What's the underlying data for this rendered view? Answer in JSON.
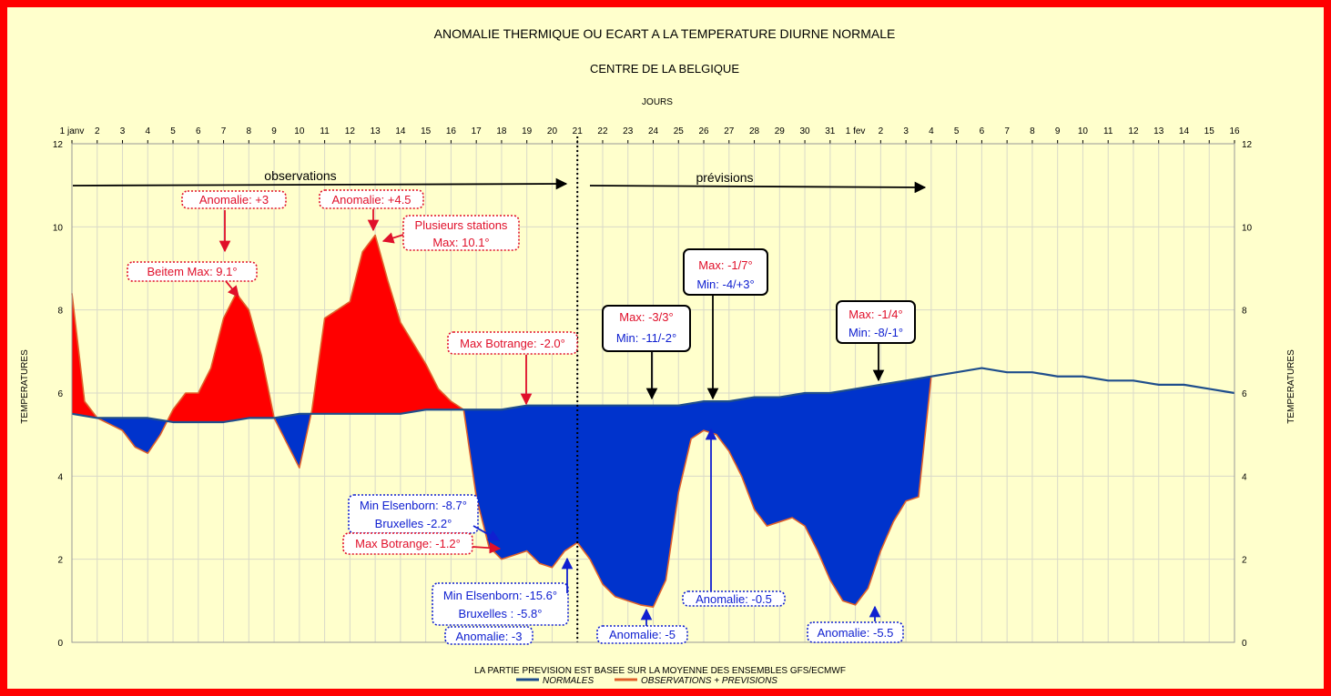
{
  "chart_data": {
    "type": "area",
    "title": "ANOMALIE THERMIQUE OU ECART A LA TEMPERATURE DIURNE NORMALE",
    "subtitle": "CENTRE DE LA BELGIQUE",
    "xlabel": "JOURS",
    "ylabel": "TEMPERATURES",
    "ylim": [
      0,
      12
    ],
    "yticks": [
      0,
      2,
      4,
      6,
      8,
      10,
      12
    ],
    "grid": true,
    "x_tick_labels": [
      "1 janv",
      "2",
      "3",
      "4",
      "5",
      "6",
      "7",
      "8",
      "9",
      "10",
      "11",
      "12",
      "13",
      "14",
      "15",
      "16",
      "17",
      "18",
      "19",
      "20",
      "21",
      "22",
      "23",
      "24",
      "25",
      "26",
      "27",
      "28",
      "29",
      "30",
      "31",
      "1 fev",
      "2",
      "3",
      "4",
      "5",
      "6",
      "7",
      "8",
      "9",
      "10",
      "11",
      "12",
      "13",
      "14",
      "15",
      "16"
    ],
    "series": [
      {
        "name": "NORMALES",
        "color": "#1f4e8c",
        "x": [
          1,
          2,
          3,
          4,
          5,
          6,
          7,
          8,
          9,
          10,
          11,
          12,
          13,
          14,
          15,
          16,
          17,
          18,
          19,
          20,
          21,
          22,
          23,
          24,
          25,
          26,
          27,
          28,
          29,
          30,
          31,
          32,
          33,
          34,
          35,
          36,
          37,
          38,
          39,
          40,
          41,
          42,
          43,
          44,
          45,
          46,
          47
        ],
        "values": [
          5.5,
          5.4,
          5.4,
          5.4,
          5.3,
          5.3,
          5.3,
          5.4,
          5.4,
          5.5,
          5.5,
          5.5,
          5.5,
          5.5,
          5.6,
          5.6,
          5.6,
          5.6,
          5.7,
          5.7,
          5.7,
          5.7,
          5.7,
          5.7,
          5.7,
          5.8,
          5.8,
          5.9,
          5.9,
          6.0,
          6.0,
          6.1,
          6.2,
          6.3,
          6.4,
          6.5,
          6.6,
          6.5,
          6.5,
          6.4,
          6.4,
          6.3,
          6.3,
          6.2,
          6.2,
          6.1,
          6.0
        ]
      },
      {
        "name": "OBSERVATIONS + PREVISIONS",
        "color": "#e0602a",
        "x": [
          1,
          1.5,
          2,
          3,
          3.5,
          4,
          4.5,
          5,
          5.5,
          6,
          6.5,
          7,
          7.5,
          8,
          8.5,
          9,
          9.5,
          10,
          10.5,
          11,
          11.5,
          12,
          12.5,
          13,
          13.5,
          14,
          14.5,
          15,
          15.5,
          16,
          16.5,
          17,
          17.5,
          18,
          18.5,
          19,
          19.5,
          20,
          20.5,
          21,
          21.5,
          22,
          22.5,
          23,
          23.5,
          24,
          24.5,
          25,
          25.5,
          26,
          26.5,
          27,
          27.5,
          28,
          28.5,
          29,
          29.5,
          30,
          30.5,
          31,
          31.5,
          32,
          32.5,
          33,
          33.5,
          34,
          34.5,
          35
        ],
        "values": [
          8.4,
          5.8,
          5.4,
          5.1,
          4.7,
          4.55,
          5.0,
          5.6,
          6.0,
          6.0,
          6.6,
          7.8,
          8.4,
          8.0,
          6.9,
          5.4,
          4.8,
          4.2,
          5.6,
          7.8,
          8.0,
          8.2,
          9.4,
          9.8,
          8.7,
          7.7,
          7.2,
          6.7,
          6.1,
          5.8,
          5.6,
          3.5,
          2.3,
          2.0,
          2.1,
          2.2,
          1.9,
          1.8,
          2.2,
          2.4,
          2.0,
          1.4,
          1.1,
          1.0,
          0.9,
          0.85,
          1.5,
          3.6,
          4.9,
          5.1,
          5.0,
          4.6,
          4.0,
          3.2,
          2.8,
          2.9,
          3.0,
          2.8,
          2.2,
          1.5,
          1.0,
          0.9,
          1.3,
          2.2,
          2.9,
          3.4,
          3.5,
          6.4
        ]
      }
    ],
    "divider_x": 21,
    "arrows": {
      "observations": "observations",
      "previsions": "prévisions"
    },
    "annotations": {
      "a1": "Anomalie: +3",
      "a2": "Beitem Max: 9.1°",
      "a3": "Anomalie: +4.5",
      "a4": "Plusieurs stations",
      "a5": "Max: 10.1°",
      "a6": "Max Botrange: -2.0°",
      "a7": "Min Elsenborn: -8.7°",
      "a8": "Bruxelles -2.2°",
      "a9": "Max Botrange: -1.2°",
      "a10": "Min Elsenborn: -15.6°",
      "a11": "Bruxelles : -5.8°",
      "a12": "Anomalie: -3",
      "a13": "Max: -3/3°",
      "a14": "Min: -11/-2°",
      "a15": "Anomalie: -5",
      "a16": "Max: -1/7°",
      "a17": "Min: -4/+3°",
      "a18": "Anomalie: -0.5",
      "a19": "Max: -1/4°",
      "a20": "Min: -8/-1°",
      "a21": "Anomalie: -5.5"
    },
    "footer": "LA PARTIE PREVISION EST BASEE SUR LA MOYENNE DES ENSEMBLES GFS/ECMWF",
    "colors": {
      "background": "#ffffcc",
      "border": "#ff0000",
      "warm_fill": "#ff0000",
      "cold_fill": "#0033cc",
      "annotation_red": "#e0102a",
      "annotation_blue": "#1020d0"
    }
  }
}
